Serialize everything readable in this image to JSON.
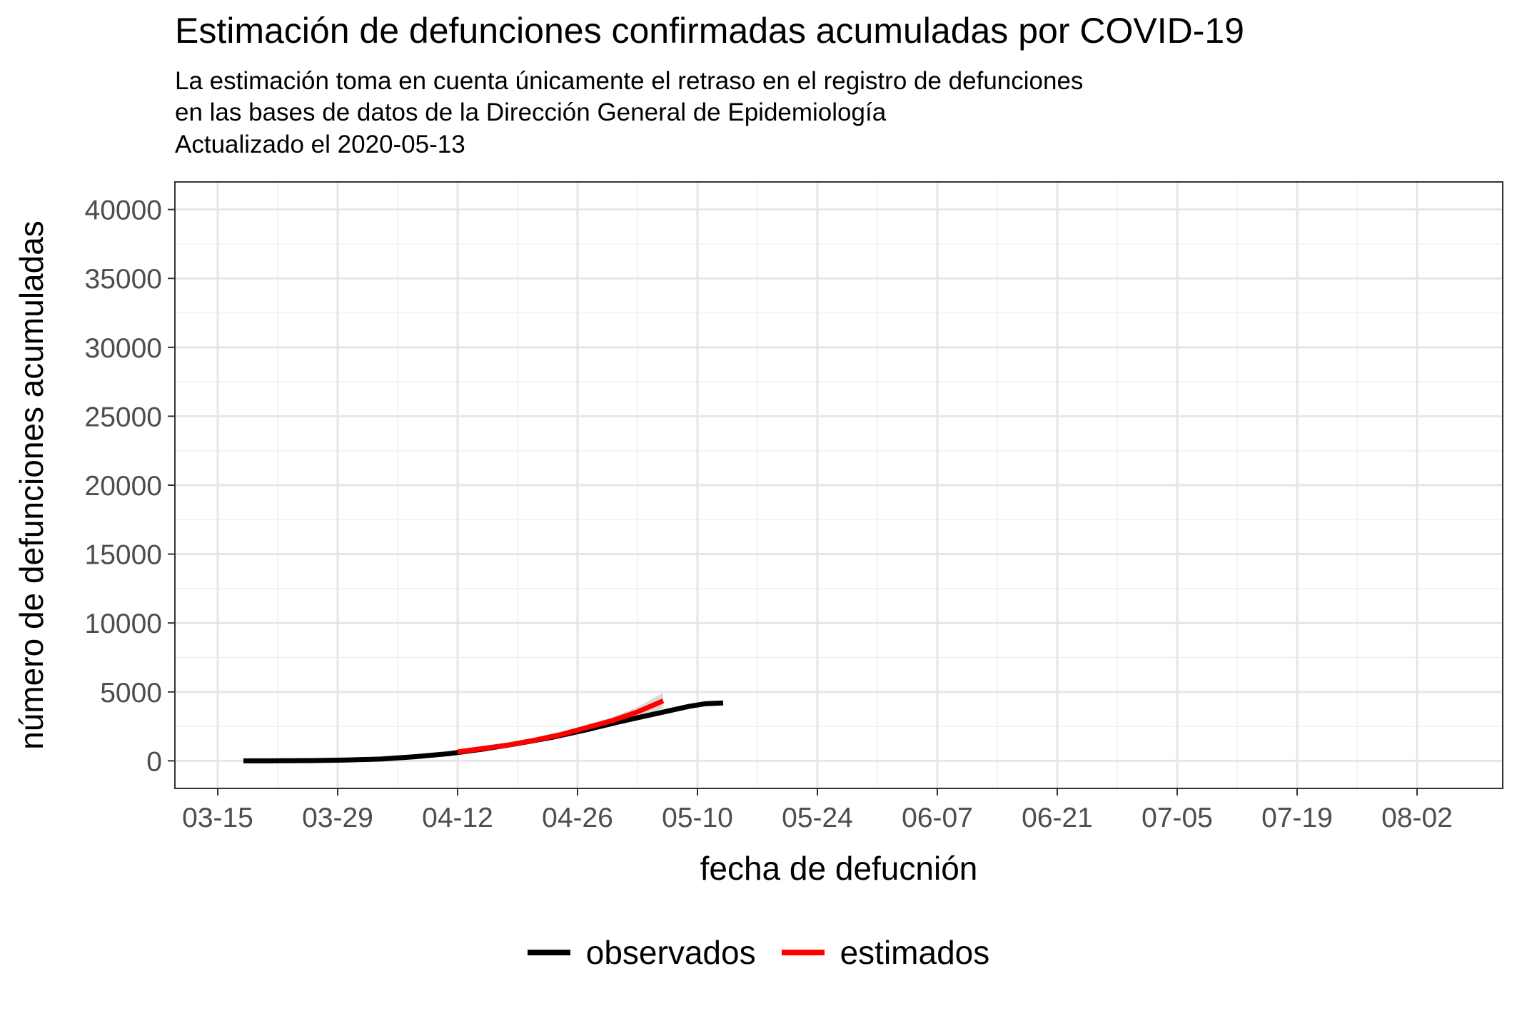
{
  "chart_data": {
    "type": "line",
    "title": "Estimación de defunciones confirmadas acumuladas por COVID-19",
    "subtitle": [
      "La estimación toma en cuenta únicamente el retraso en el registro de defunciones",
      "en las bases de datos de la Dirección General de Epidemiología",
      "Actualizado el 2020-05-13"
    ],
    "xlabel": "fecha de defucnión",
    "ylabel": "número de defunciones acumuladas",
    "x_type": "date",
    "xlim": [
      "2020-03-10",
      "2020-08-12"
    ],
    "ylim": [
      -2000,
      42000
    ],
    "x_ticks": [
      "2020-03-15",
      "2020-03-29",
      "2020-04-12",
      "2020-04-26",
      "2020-05-10",
      "2020-05-24",
      "2020-06-07",
      "2020-06-21",
      "2020-07-05",
      "2020-07-19",
      "2020-08-02"
    ],
    "x_tick_labels": [
      "03-15",
      "03-29",
      "04-12",
      "04-26",
      "05-10",
      "05-24",
      "06-07",
      "06-21",
      "07-05",
      "07-19",
      "08-02"
    ],
    "y_ticks": [
      0,
      5000,
      10000,
      15000,
      20000,
      25000,
      30000,
      35000,
      40000
    ],
    "y_tick_labels": [
      "0",
      "5000",
      "10000",
      "15000",
      "20000",
      "25000",
      "30000",
      "35000",
      "40000"
    ],
    "grid": true,
    "legend_position": "bottom",
    "series": [
      {
        "name": "observados",
        "color": "#000000",
        "x": [
          "2020-03-18",
          "2020-03-22",
          "2020-03-26",
          "2020-03-30",
          "2020-04-03",
          "2020-04-07",
          "2020-04-11",
          "2020-04-15",
          "2020-04-19",
          "2020-04-23",
          "2020-04-27",
          "2020-05-01",
          "2020-05-05",
          "2020-05-09",
          "2020-05-11",
          "2020-05-13"
        ],
        "y": [
          0,
          5,
          20,
          60,
          130,
          300,
          520,
          850,
          1250,
          1700,
          2250,
          2850,
          3400,
          3950,
          4150,
          4200
        ]
      },
      {
        "name": "estimados",
        "color": "#ff0000",
        "x": [
          "2020-04-12",
          "2020-04-15",
          "2020-04-18",
          "2020-04-21",
          "2020-04-24",
          "2020-04-27",
          "2020-04-30",
          "2020-05-03",
          "2020-05-06"
        ],
        "y": [
          650,
          900,
          1150,
          1500,
          1900,
          2400,
          2900,
          3550,
          4350
        ]
      }
    ],
    "band": {
      "color": "#c0c0c0",
      "x": [
        "2020-04-12",
        "2020-04-15",
        "2020-04-18",
        "2020-04-21",
        "2020-04-24",
        "2020-04-27",
        "2020-04-30",
        "2020-05-03",
        "2020-05-06"
      ],
      "lower": [
        600,
        850,
        1080,
        1400,
        1780,
        2220,
        2680,
        3200,
        3800
      ],
      "upper": [
        700,
        950,
        1230,
        1620,
        2050,
        2600,
        3150,
        3900,
        4950
      ]
    }
  }
}
